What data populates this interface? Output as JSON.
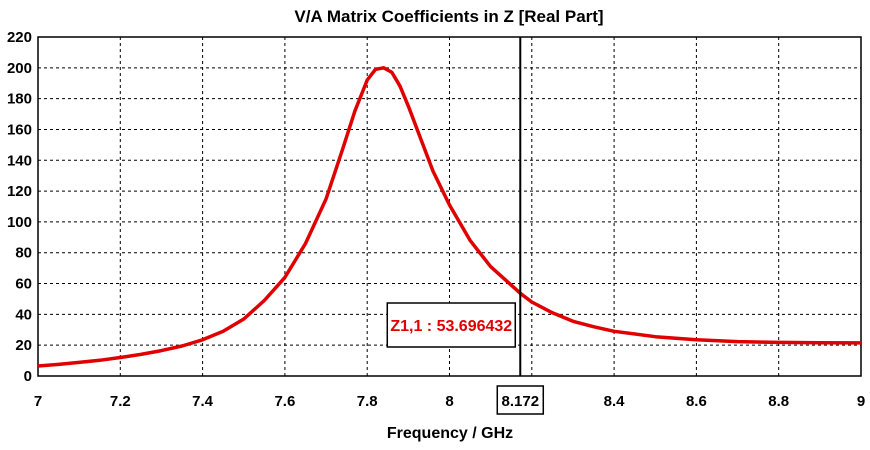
{
  "chart_data": {
    "type": "line",
    "title": "V/A Matrix Coefficients in Z [Real Part]",
    "xlabel": "Frequency / GHz",
    "ylabel": "",
    "xlim": [
      7,
      9
    ],
    "ylim": [
      0,
      220
    ],
    "x_ticks": [
      7,
      7.2,
      7.4,
      7.6,
      7.8,
      8,
      8.2,
      8.4,
      8.6,
      8.8,
      9
    ],
    "x_tick_labels": [
      "7",
      "7.2",
      "7.4",
      "7.6",
      "7.8",
      "8",
      "",
      "8.4",
      "8.6",
      "8.8",
      "9"
    ],
    "y_ticks": [
      0,
      20,
      40,
      60,
      80,
      100,
      120,
      140,
      160,
      180,
      200,
      220
    ],
    "grid": true,
    "legend": "none",
    "series": [
      {
        "color": "#e00000",
        "x": [
          7.0,
          7.05,
          7.1,
          7.15,
          7.2,
          7.25,
          7.3,
          7.35,
          7.4,
          7.45,
          7.5,
          7.55,
          7.6,
          7.65,
          7.7,
          7.74,
          7.77,
          7.8,
          7.82,
          7.84,
          7.86,
          7.88,
          7.9,
          7.93,
          7.96,
          8.0,
          8.05,
          8.1,
          8.15,
          8.172,
          8.2,
          8.25,
          8.3,
          8.35,
          8.4,
          8.5,
          8.6,
          8.7,
          8.8,
          8.9,
          9.0
        ],
        "y": [
          6.5,
          7.5,
          8.8,
          10.2,
          12,
          14,
          16.5,
          19.5,
          23.5,
          29,
          37,
          49,
          64,
          86,
          115,
          147,
          172,
          192,
          199,
          200,
          197,
          188,
          175,
          154,
          133,
          111,
          88,
          71,
          59,
          53.7,
          48,
          41,
          35.5,
          32,
          29,
          25.5,
          23.5,
          22.3,
          21.8,
          21.6,
          21.5
        ]
      }
    ],
    "marker": {
      "x": 8.172,
      "x_label": "8.172",
      "value_label": "Z1,1 : 53.696432"
    }
  }
}
